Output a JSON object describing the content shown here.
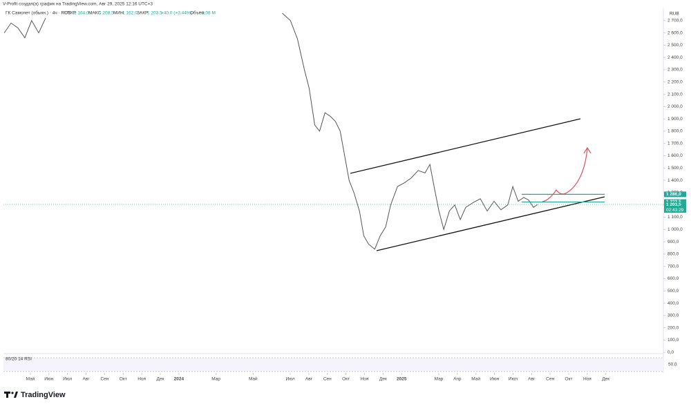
{
  "header": {
    "attribution": "V-Profit создал(а) график на TradingView.com, Авг 29, 2025 12:16 UTC+3"
  },
  "legend": {
    "symbol": "ГК Самолет (обыкн.) · 4ч · RUS",
    "open_label": "ОТКР",
    "open": "1 164,0",
    "high_label": "МАКС",
    "high": "1 208,5",
    "low_label": "МИН",
    "low": "1 162,0",
    "close_label": "ЗАКР",
    "close": "1 203,5",
    "change": "+40,0 (+3,44%)",
    "volume_label": "Объём",
    "volume": "1,08 М"
  },
  "currency": "RUB",
  "rsi": {
    "label": "80/20 14 RSI",
    "tick": "50,0"
  },
  "footer": {
    "brand": "TradingView"
  },
  "chart_data": {
    "type": "line",
    "color": "#555555",
    "x": [
      -1.41,
      -1.04,
      -0.67,
      -0.3,
      0.07,
      0.45,
      0.82,
      7,
      13.57,
      14.01,
      14.39,
      14.76,
      15.02,
      15.32,
      15.58,
      15.87,
      16.17,
      16.43,
      16.69,
      16.99,
      17.17,
      17.43,
      17.73,
      17.96,
      18.22,
      18.55,
      18.85,
      19.14,
      19.41,
      19.78,
      20.15,
      20.52,
      20.89,
      21.26,
      21.52,
      21.75,
      22.01,
      22.27,
      22.57,
      22.86,
      23.16,
      23.45,
      23.87,
      24.24,
      24.61,
      24.98,
      25.35,
      25.72,
      25.99,
      26.28,
      26.58,
      26.84,
      27.1,
      27.32
    ],
    "series": [
      {
        "name": "ГК Самолет",
        "color": "#555555",
        "values": [
          2600,
          2680,
          2640,
          2560,
          2700,
          2600,
          2720,
          null,
          2760,
          2700,
          2550,
          2300,
          2150,
          1850,
          1800,
          1950,
          1920,
          1880,
          1800,
          1550,
          1400,
          1300,
          1150,
          950,
          880,
          840,
          950,
          1020,
          1200,
          1350,
          1380,
          1420,
          1480,
          1460,
          1530,
          1350,
          1150,
          1000,
          1150,
          1200,
          1080,
          1180,
          1220,
          1250,
          1150,
          1230,
          1160,
          1200,
          1350,
          1230,
          1260,
          1240,
          1180,
          1203.5
        ]
      }
    ],
    "xlim": [
      -1.45,
      34.1
    ],
    "xticks": [
      {
        "value": 0,
        "label": "Май"
      },
      {
        "value": 1,
        "label": "Июн"
      },
      {
        "value": 2,
        "label": "Июл"
      },
      {
        "value": 3,
        "label": "Авг"
      },
      {
        "value": 4,
        "label": "Сен"
      },
      {
        "value": 5,
        "label": "Окт"
      },
      {
        "value": 6,
        "label": "Ноя"
      },
      {
        "value": 7,
        "label": "Дек"
      },
      {
        "value": 8,
        "label": "2024"
      },
      {
        "value": 10,
        "label": "Мар"
      },
      {
        "value": 12,
        "label": "Май"
      },
      {
        "value": 14,
        "label": "Июл"
      },
      {
        "value": 15,
        "label": "Авг"
      },
      {
        "value": 16,
        "label": "Сен"
      },
      {
        "value": 17,
        "label": "Окт"
      },
      {
        "value": 18,
        "label": "Ноя"
      },
      {
        "value": 19,
        "label": "Дек"
      },
      {
        "value": 20,
        "label": "2025"
      },
      {
        "value": 22,
        "label": "Мар"
      },
      {
        "value": 23,
        "label": "Апр"
      },
      {
        "value": 24,
        "label": "Май"
      },
      {
        "value": 25,
        "label": "Июн"
      },
      {
        "value": 26,
        "label": "Июл"
      },
      {
        "value": 27,
        "label": "Авг"
      },
      {
        "value": 28,
        "label": "Сен"
      },
      {
        "value": 29,
        "label": "Окт"
      },
      {
        "value": 30,
        "label": "Ноя"
      },
      {
        "value": 31,
        "label": "Дек"
      }
    ],
    "ylim": [
      -10,
      2800
    ],
    "yticks": [
      {
        "value": 0,
        "label": "0,0"
      },
      {
        "value": 100,
        "label": "100,0"
      },
      {
        "value": 200,
        "label": "200,0"
      },
      {
        "value": 300,
        "label": "300,0"
      },
      {
        "value": 400,
        "label": "400,0"
      },
      {
        "value": 500,
        "label": "500,0"
      },
      {
        "value": 600,
        "label": "600,0"
      },
      {
        "value": 700,
        "label": "700,0"
      },
      {
        "value": 800,
        "label": "800,0"
      },
      {
        "value": 900,
        "label": "900,0"
      },
      {
        "value": 1000,
        "label": "1 000,0"
      },
      {
        "value": 1100,
        "label": "1 100,0"
      },
      {
        "value": 1200,
        "label": "1 200,0"
      },
      {
        "value": 1300,
        "label": "1 300,0"
      },
      {
        "value": 1400,
        "label": "1 400,0"
      },
      {
        "value": 1500,
        "label": "1 500,0"
      },
      {
        "value": 1600,
        "label": "1 600,0"
      },
      {
        "value": 1700,
        "label": "1 700,0"
      },
      {
        "value": 1800,
        "label": "1 800,0"
      },
      {
        "value": 1900,
        "label": "1 900,0"
      },
      {
        "value": 2000,
        "label": "2 000,0"
      },
      {
        "value": 2100,
        "label": "2 100,0"
      },
      {
        "value": 2200,
        "label": "2 200,0"
      },
      {
        "value": 2300,
        "label": "2 300,0"
      },
      {
        "value": 2400,
        "label": "2 400,0"
      },
      {
        "value": 2500,
        "label": "2 500,0"
      },
      {
        "value": 2600,
        "label": "2 600,0"
      },
      {
        "value": 2700,
        "label": "2 700,0"
      }
    ],
    "levels": [
      {
        "value": 1286,
        "label": "1 286,0",
        "color": "#26a69a"
      },
      {
        "value": 1223.5,
        "label": "1 223,5",
        "color": "#26a69a"
      }
    ],
    "last_price": {
      "value": 1203.5,
      "label": "1 203,5",
      "timer": "02:43:29",
      "color": "#22ab94"
    }
  }
}
